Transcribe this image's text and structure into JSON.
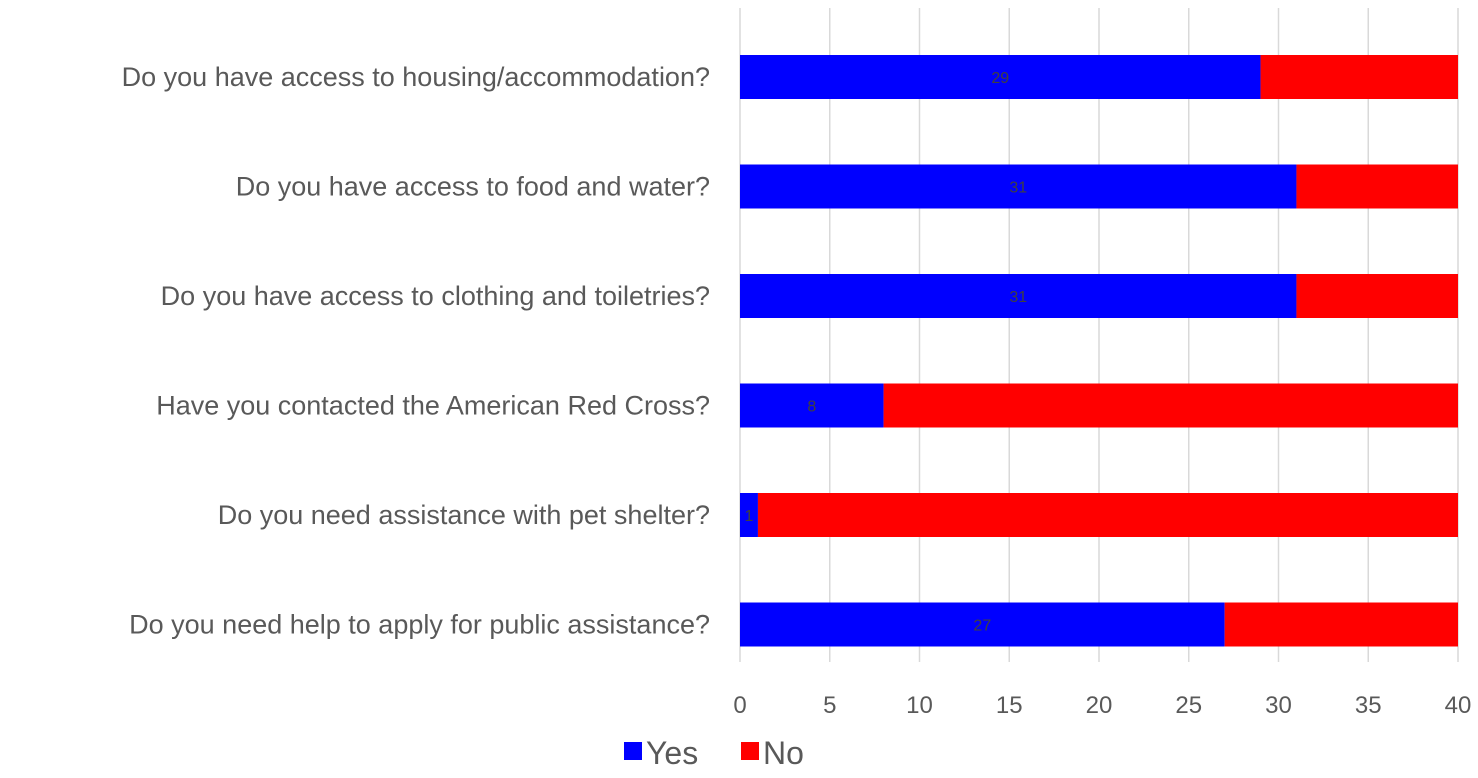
{
  "chart_data": {
    "type": "bar",
    "orientation": "horizontal",
    "stacked": true,
    "title": "",
    "xlabel": "",
    "ylabel": "",
    "categories": [
      "Do you have access to housing/accommodation?",
      "Do you have access to food and water?",
      "Do you have access to clothing and toiletries?",
      "Have you contacted the American Red Cross?",
      "Do you need assistance with pet shelter?",
      "Do you need help to apply for public assistance?"
    ],
    "series": [
      {
        "name": "Yes",
        "color": "#0000ff",
        "values": [
          29,
          31,
          31,
          8,
          1,
          27
        ],
        "data_labels": [
          "29",
          "31",
          "31",
          "8",
          "1",
          "27"
        ]
      },
      {
        "name": "No",
        "color": "#ff0000",
        "values": [
          11,
          9,
          9,
          32,
          39,
          13
        ]
      }
    ],
    "xlim": [
      0,
      40
    ],
    "xticks": [
      0,
      5,
      10,
      15,
      20,
      25,
      30,
      35,
      40
    ],
    "xtick_labels": [
      "0",
      "5",
      "10",
      "15",
      "20",
      "25",
      "30",
      "35",
      "40"
    ],
    "grid": "vertical",
    "legend_position": "bottom"
  }
}
